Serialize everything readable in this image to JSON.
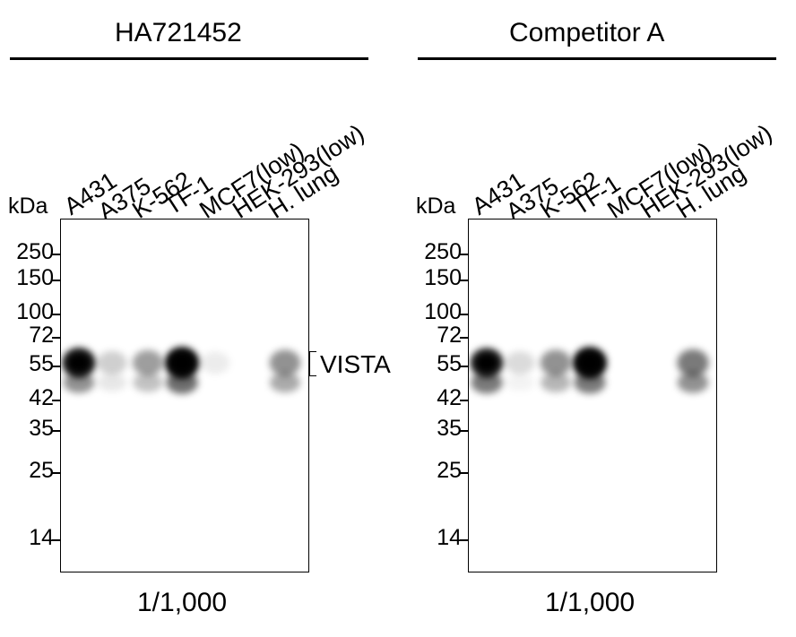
{
  "panels": [
    {
      "title": "HA721452",
      "kda": "kDa",
      "lanes": [
        "A431",
        "A375",
        "K-562",
        "TF-1",
        "MCF7(low)",
        "HEK-293(low)",
        "H. lung"
      ],
      "mw_markers": [
        "250",
        "150",
        "100",
        "72",
        "55",
        "42",
        "35",
        "25",
        "14"
      ],
      "dilution": "1/1,000",
      "band_intensity": [
        {
          "lane": "A431",
          "upper": 0.85,
          "lower": 0.45
        },
        {
          "lane": "A375",
          "upper": 0.2,
          "lower": 0.1
        },
        {
          "lane": "K-562",
          "upper": 0.4,
          "lower": 0.25
        },
        {
          "lane": "TF-1",
          "upper": 1.0,
          "lower": 0.6
        },
        {
          "lane": "MCF7(low)",
          "upper": 0.08,
          "lower": 0.0
        },
        {
          "lane": "HEK-293(low)",
          "upper": 0.0,
          "lower": 0.0
        },
        {
          "lane": "H. lung",
          "upper": 0.45,
          "lower": 0.35
        }
      ]
    },
    {
      "title": "Competitor A",
      "kda": "kDa",
      "lanes": [
        "A431",
        "A375",
        "K-562",
        "TF-1",
        "MCF7(low)",
        "HEK-293(low)",
        "H. lung"
      ],
      "mw_markers": [
        "250",
        "150",
        "100",
        "72",
        "55",
        "42",
        "35",
        "25",
        "14"
      ],
      "dilution": "1/1,000",
      "band_intensity": [
        {
          "lane": "A431",
          "upper": 0.8,
          "lower": 0.55
        },
        {
          "lane": "A375",
          "upper": 0.15,
          "lower": 0.05
        },
        {
          "lane": "K-562",
          "upper": 0.45,
          "lower": 0.3
        },
        {
          "lane": "TF-1",
          "upper": 1.0,
          "lower": 0.55
        },
        {
          "lane": "MCF7(low)",
          "upper": 0.0,
          "lower": 0.0
        },
        {
          "lane": "HEK-293(low)",
          "upper": 0.0,
          "lower": 0.0
        },
        {
          "lane": "H. lung",
          "upper": 0.55,
          "lower": 0.45
        }
      ]
    }
  ],
  "band_label": "VISTA"
}
